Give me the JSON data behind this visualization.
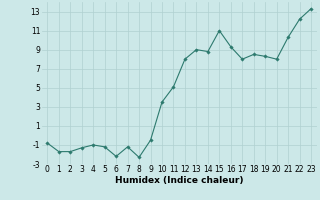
{
  "x": [
    0,
    1,
    2,
    3,
    4,
    5,
    6,
    7,
    8,
    9,
    10,
    11,
    12,
    13,
    14,
    15,
    16,
    17,
    18,
    19,
    20,
    21,
    22,
    23
  ],
  "y": [
    -0.8,
    -1.7,
    -1.7,
    -1.3,
    -1.0,
    -1.2,
    -2.2,
    -1.2,
    -2.3,
    -0.5,
    3.5,
    5.1,
    8.0,
    9.0,
    8.8,
    11.0,
    9.3,
    8.0,
    8.5,
    8.3,
    8.0,
    10.3,
    12.2,
    13.3
  ],
  "line_color": "#2d7a6e",
  "marker": "D",
  "marker_size": 1.8,
  "bg_color": "#cce8e8",
  "grid_color": "#b0d0d0",
  "xlabel": "Humidex (Indice chaleur)",
  "xlabel_fontsize": 6.5,
  "tick_fontsize": 5.5,
  "ylim": [
    -3,
    14
  ],
  "xlim": [
    -0.5,
    23.5
  ],
  "yticks": [
    -3,
    -1,
    1,
    3,
    5,
    7,
    9,
    11,
    13
  ],
  "xticks": [
    0,
    1,
    2,
    3,
    4,
    5,
    6,
    7,
    8,
    9,
    10,
    11,
    12,
    13,
    14,
    15,
    16,
    17,
    18,
    19,
    20,
    21,
    22,
    23
  ]
}
